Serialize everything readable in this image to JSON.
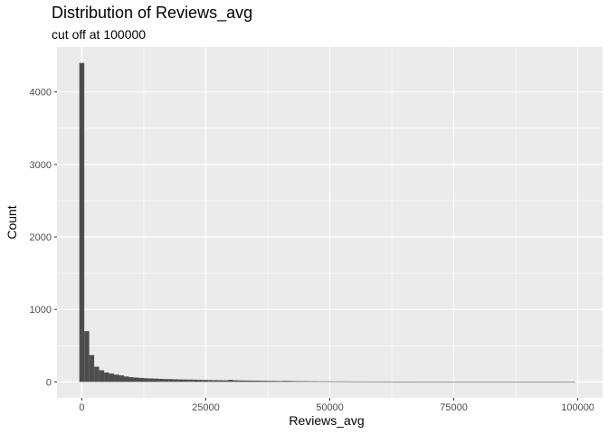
{
  "chart_data": {
    "type": "bar",
    "title": "Distribution of Reviews_avg",
    "subtitle": "cut off at 100000",
    "xlabel": "Reviews_avg",
    "ylabel": "Count",
    "xlim": [
      -5000,
      105000
    ],
    "ylim": [
      -220,
      4620
    ],
    "grid": true,
    "x_ticks": [
      0,
      25000,
      50000,
      75000,
      100000
    ],
    "x_tick_labels": [
      "0",
      "25000",
      "50000",
      "75000",
      "100000"
    ],
    "y_ticks": [
      0,
      1000,
      2000,
      3000,
      4000
    ],
    "y_tick_labels": [
      "0",
      "1000",
      "2000",
      "3000",
      "4000"
    ],
    "bin_width": 1000,
    "bin_starts": [
      -500,
      500,
      1500,
      2500,
      3500,
      4500,
      5500,
      6500,
      7500,
      8500,
      9500,
      10500,
      11500,
      12500,
      13500,
      14500,
      15500,
      16500,
      17500,
      18500,
      19500,
      20500,
      21500,
      22500,
      23500,
      24500,
      25500,
      26500,
      27500,
      28500,
      29500,
      30500,
      31500,
      32500,
      33500,
      34500,
      35500,
      36500,
      37500,
      38500,
      39500,
      40500,
      41500,
      42500,
      43500,
      44500,
      45500,
      46500,
      47500,
      48500,
      49500,
      50500,
      51500,
      52500,
      53500,
      54500,
      55500,
      56500,
      57500,
      58500,
      59500,
      60500,
      61500,
      62500,
      63500,
      64500,
      65500,
      66500,
      67500,
      68500,
      69500,
      70500,
      71500,
      72500,
      73500,
      74500,
      75500,
      76500,
      77500,
      78500,
      79500,
      80500,
      81500,
      82500,
      83500,
      84500,
      85500,
      86500,
      87500,
      88500,
      89500,
      90500,
      91500,
      92500,
      93500,
      94500,
      95500,
      96500,
      97500,
      98500
    ],
    "values": [
      4400,
      700,
      370,
      210,
      160,
      130,
      115,
      100,
      90,
      75,
      65,
      60,
      55,
      50,
      48,
      45,
      42,
      40,
      38,
      36,
      34,
      33,
      32,
      30,
      28,
      27,
      25,
      24,
      23,
      22,
      28,
      22,
      20,
      19,
      18,
      17,
      16,
      15,
      14,
      13,
      12,
      14,
      13,
      11,
      10,
      10,
      9,
      9,
      8,
      8,
      8,
      7,
      7,
      7,
      6,
      6,
      6,
      6,
      5,
      5,
      5,
      5,
      5,
      4,
      4,
      4,
      4,
      4,
      4,
      4,
      4,
      3,
      3,
      3,
      3,
      3,
      3,
      3,
      3,
      3,
      3,
      3,
      3,
      3,
      3,
      3,
      3,
      3,
      3,
      3,
      3,
      3,
      3,
      3,
      3,
      3,
      3,
      3,
      3,
      3
    ],
    "colors": {
      "panel": "#ebebeb",
      "grid_major": "#ffffff",
      "bar": "#4d4d4d"
    }
  }
}
